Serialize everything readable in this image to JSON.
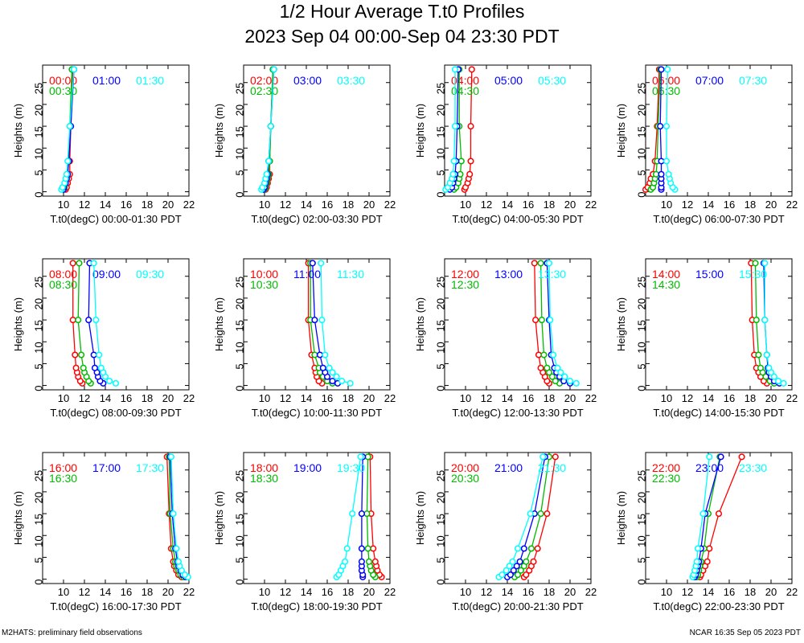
{
  "title": "1/2 Hour Average T.t0 Profiles",
  "subtitle": "2023 Sep 04 00:00-Sep 04 23:30 PDT",
  "footer_left": "M2HATS: preliminary field observations",
  "footer_right": "NCAR 16:35 Sep 05 2023 PDT",
  "colors": {
    "c0": "#ff0000",
    "c1": "#00bb00",
    "c2": "#0000ff",
    "c3": "#00ffff"
  },
  "chart_data": [
    {
      "type": "line",
      "xlabel": "T.t0(degC) 00:00-01:30 PDT",
      "ylabel": "Heights (m)",
      "xlim": [
        8,
        22
      ],
      "ylim": [
        -1,
        29
      ],
      "xticks": [
        10,
        12,
        14,
        16,
        18,
        20,
        22
      ],
      "yticks": [
        0,
        5,
        10,
        15,
        20,
        25
      ],
      "heights": [
        0.5,
        1,
        2,
        3,
        4,
        7,
        15,
        28
      ],
      "series": [
        {
          "name": "00:00",
          "values": [
            10.2,
            10.3,
            10.4,
            10.5,
            10.6,
            10.6,
            10.7,
            10.9
          ]
        },
        {
          "name": "00:30",
          "values": [
            10.0,
            10.1,
            10.2,
            10.3,
            10.4,
            10.5,
            10.6,
            10.8
          ]
        },
        {
          "name": "01:00",
          "values": [
            10.0,
            10.0,
            10.2,
            10.3,
            10.4,
            10.5,
            10.7,
            11.0
          ]
        },
        {
          "name": "01:30",
          "values": [
            9.8,
            9.9,
            10.1,
            10.2,
            10.3,
            10.4,
            10.6,
            11.0
          ]
        }
      ]
    },
    {
      "type": "line",
      "xlabel": "T.t0(degC) 02:00-03:30 PDT",
      "ylabel": "Heights (m)",
      "xlim": [
        8,
        22
      ],
      "ylim": [
        -1,
        29
      ],
      "xticks": [
        10,
        12,
        14,
        16,
        18,
        20,
        22
      ],
      "yticks": [
        0,
        5,
        10,
        15,
        20,
        25
      ],
      "heights": [
        0.5,
        1,
        2,
        3,
        4,
        7,
        15,
        28
      ],
      "series": [
        {
          "name": "02:00",
          "values": [
            10.1,
            10.2,
            10.3,
            10.4,
            10.5,
            10.5,
            10.6,
            10.8
          ]
        },
        {
          "name": "02:30",
          "values": [
            10.0,
            10.1,
            10.2,
            10.3,
            10.4,
            10.5,
            10.6,
            10.8
          ]
        },
        {
          "name": "03:00",
          "values": [
            9.9,
            10.0,
            10.1,
            10.2,
            10.3,
            10.4,
            10.6,
            10.9
          ]
        },
        {
          "name": "03:30",
          "values": [
            9.7,
            9.8,
            10.0,
            10.1,
            10.2,
            10.4,
            10.6,
            10.9
          ]
        }
      ]
    },
    {
      "type": "line",
      "xlabel": "T.t0(degC) 04:00-05:30 PDT",
      "ylabel": "Heights (m)",
      "xlim": [
        8,
        22
      ],
      "ylim": [
        -1,
        29
      ],
      "xticks": [
        10,
        12,
        14,
        16,
        18,
        20,
        22
      ],
      "yticks": [
        0,
        5,
        10,
        15,
        20,
        25
      ],
      "heights": [
        0.5,
        1,
        2,
        3,
        4,
        7,
        15,
        28
      ],
      "series": [
        {
          "name": "04:00",
          "values": [
            9.9,
            10.0,
            10.2,
            10.3,
            10.4,
            10.5,
            10.5,
            10.6
          ]
        },
        {
          "name": "04:30",
          "values": [
            8.9,
            9.1,
            9.3,
            9.4,
            9.5,
            9.6,
            9.4,
            9.4
          ]
        },
        {
          "name": "05:00",
          "values": [
            8.5,
            8.7,
            8.8,
            8.9,
            9.0,
            9.1,
            9.2,
            9.3
          ]
        },
        {
          "name": "05:30",
          "values": [
            8.1,
            8.3,
            8.5,
            8.7,
            8.8,
            8.9,
            9.0,
            9.0
          ]
        }
      ]
    },
    {
      "type": "line",
      "xlabel": "T.t0(degC) 06:00-07:30 PDT",
      "ylabel": "Heights (m)",
      "xlim": [
        8,
        22
      ],
      "ylim": [
        -1,
        29
      ],
      "xticks": [
        10,
        12,
        14,
        16,
        18,
        20,
        22
      ],
      "yticks": [
        0,
        5,
        10,
        15,
        20,
        25
      ],
      "heights": [
        0.5,
        1,
        2,
        3,
        4,
        7,
        15,
        28
      ],
      "series": [
        {
          "name": "06:00",
          "values": [
            8.0,
            8.2,
            8.4,
            8.5,
            8.7,
            8.9,
            9.1,
            9.3
          ]
        },
        {
          "name": "06:30",
          "values": [
            8.5,
            8.7,
            8.8,
            8.9,
            9.0,
            9.1,
            9.2,
            9.4
          ]
        },
        {
          "name": "07:00",
          "values": [
            9.5,
            9.5,
            9.5,
            9.5,
            9.5,
            9.5,
            9.4,
            9.5
          ]
        },
        {
          "name": "07:30",
          "values": [
            10.8,
            10.6,
            10.4,
            10.3,
            10.2,
            10.0,
            10.0,
            10.1
          ]
        }
      ]
    },
    {
      "type": "line",
      "xlabel": "T.t0(degC) 08:00-09:30 PDT",
      "ylabel": "Heights (m)",
      "xlim": [
        8,
        22
      ],
      "ylim": [
        -1,
        29
      ],
      "xticks": [
        10,
        12,
        14,
        16,
        18,
        20,
        22
      ],
      "yticks": [
        0,
        5,
        10,
        15,
        20,
        25
      ],
      "heights": [
        0.5,
        1,
        2,
        3,
        4,
        7,
        15,
        28
      ],
      "series": [
        {
          "name": "08:00",
          "values": [
            11.8,
            11.6,
            11.4,
            11.3,
            11.2,
            11.1,
            10.9,
            10.9
          ]
        },
        {
          "name": "08:30",
          "values": [
            12.6,
            12.4,
            12.2,
            12.0,
            11.9,
            11.7,
            11.4,
            11.5
          ]
        },
        {
          "name": "09:00",
          "values": [
            13.8,
            13.5,
            13.3,
            13.2,
            13.0,
            12.9,
            12.4,
            12.5
          ]
        },
        {
          "name": "09:30",
          "values": [
            15.0,
            14.4,
            14.0,
            13.8,
            13.6,
            13.4,
            13.1,
            12.9
          ]
        }
      ]
    },
    {
      "type": "line",
      "xlabel": "T.t0(degC) 10:00-11:30 PDT",
      "ylabel": "Heights (m)",
      "xlim": [
        8,
        22
      ],
      "ylim": [
        -1,
        29
      ],
      "xticks": [
        10,
        12,
        14,
        16,
        18,
        20,
        22
      ],
      "yticks": [
        0,
        5,
        10,
        15,
        20,
        25
      ],
      "heights": [
        0.5,
        1,
        2,
        3,
        4,
        7,
        15,
        28
      ],
      "series": [
        {
          "name": "10:00",
          "values": [
            15.5,
            15.2,
            15.0,
            14.9,
            14.8,
            14.5,
            14.2,
            14.2
          ]
        },
        {
          "name": "10:30",
          "values": [
            16.5,
            16.0,
            15.6,
            15.3,
            15.2,
            14.8,
            14.4,
            14.4
          ]
        },
        {
          "name": "11:00",
          "values": [
            17.0,
            16.5,
            16.0,
            15.8,
            15.6,
            15.3,
            14.8,
            14.6
          ]
        },
        {
          "name": "11:30",
          "values": [
            18.2,
            17.4,
            16.9,
            16.5,
            16.2,
            15.8,
            15.5,
            15.4
          ]
        }
      ]
    },
    {
      "type": "line",
      "xlabel": "T.t0(degC) 12:00-13:30 PDT",
      "ylabel": "Heights (m)",
      "xlim": [
        8,
        22
      ],
      "ylim": [
        -1,
        29
      ],
      "xticks": [
        10,
        12,
        14,
        16,
        18,
        20,
        22
      ],
      "yticks": [
        0,
        5,
        10,
        15,
        20,
        25
      ],
      "heights": [
        0.5,
        1,
        2,
        3,
        4,
        7,
        15,
        28
      ],
      "series": [
        {
          "name": "12:00",
          "values": [
            18.0,
            17.8,
            17.6,
            17.4,
            17.2,
            17.0,
            16.7,
            16.6
          ]
        },
        {
          "name": "12:30",
          "values": [
            19.0,
            18.6,
            18.3,
            18.0,
            17.8,
            17.5,
            17.3,
            17.2
          ]
        },
        {
          "name": "13:00",
          "values": [
            20.0,
            19.4,
            19.0,
            18.7,
            18.5,
            18.2,
            18.0,
            17.8
          ]
        },
        {
          "name": "13:30",
          "values": [
            20.6,
            20.0,
            19.5,
            19.1,
            18.8,
            18.4,
            18.1,
            18.0
          ]
        }
      ]
    },
    {
      "type": "line",
      "xlabel": "T.t0(degC) 14:00-15:30 PDT",
      "ylabel": "Heights (m)",
      "xlim": [
        8,
        22
      ],
      "ylim": [
        -1,
        29
      ],
      "xticks": [
        10,
        12,
        14,
        16,
        18,
        20,
        22
      ],
      "yticks": [
        0,
        5,
        10,
        15,
        20,
        25
      ],
      "heights": [
        0.5,
        1,
        2,
        3,
        4,
        7,
        15,
        28
      ],
      "series": [
        {
          "name": "14:00",
          "values": [
            19.6,
            19.3,
            19.0,
            18.8,
            18.6,
            18.4,
            18.2,
            18.1
          ]
        },
        {
          "name": "14:30",
          "values": [
            20.3,
            19.9,
            19.5,
            19.2,
            19.0,
            18.8,
            18.6,
            18.5
          ]
        },
        {
          "name": "15:00",
          "values": [
            20.8,
            20.3,
            20.0,
            19.8,
            19.7,
            19.6,
            19.4,
            19.3
          ]
        },
        {
          "name": "15:30",
          "values": [
            21.2,
            20.7,
            20.3,
            20.0,
            19.8,
            19.6,
            19.4,
            19.4
          ]
        }
      ]
    },
    {
      "type": "line",
      "xlabel": "T.t0(degC) 16:00-17:30 PDT",
      "ylabel": "Heights (m)",
      "xlim": [
        8,
        22
      ],
      "ylim": [
        -1,
        29
      ],
      "xticks": [
        10,
        12,
        14,
        16,
        18,
        20,
        22
      ],
      "yticks": [
        0,
        5,
        10,
        15,
        20,
        25
      ],
      "heights": [
        0.5,
        1,
        2,
        3,
        4,
        7,
        15,
        28
      ],
      "series": [
        {
          "name": "16:00",
          "values": [
            21.3,
            21.0,
            20.8,
            20.6,
            20.5,
            20.3,
            20.1,
            19.9
          ]
        },
        {
          "name": "16:30",
          "values": [
            21.5,
            21.2,
            21.0,
            20.8,
            20.7,
            20.5,
            20.2,
            20.1
          ]
        },
        {
          "name": "17:00",
          "values": [
            21.7,
            21.4,
            21.2,
            21.0,
            20.9,
            20.7,
            20.4,
            20.2
          ]
        },
        {
          "name": "17:30",
          "values": [
            21.9,
            21.6,
            21.3,
            21.1,
            21.0,
            20.8,
            20.5,
            20.3
          ]
        }
      ]
    },
    {
      "type": "line",
      "xlabel": "T.t0(degC) 18:00-19:30 PDT",
      "ylabel": "Heights (m)",
      "xlim": [
        8,
        22
      ],
      "ylim": [
        -1,
        29
      ],
      "xticks": [
        10,
        12,
        14,
        16,
        18,
        20,
        22
      ],
      "yticks": [
        0,
        5,
        10,
        15,
        20,
        25
      ],
      "heights": [
        0.5,
        1,
        2,
        3,
        4,
        7,
        15,
        28
      ],
      "series": [
        {
          "name": "18:00",
          "values": [
            21.2,
            21.0,
            20.8,
            20.7,
            20.6,
            20.4,
            20.2,
            20.1
          ]
        },
        {
          "name": "18:30",
          "values": [
            20.6,
            20.4,
            20.2,
            20.1,
            20.0,
            19.9,
            19.8,
            19.9
          ]
        },
        {
          "name": "19:00",
          "values": [
            19.4,
            19.4,
            19.3,
            19.3,
            19.3,
            19.3,
            19.3,
            19.4
          ]
        },
        {
          "name": "19:30",
          "values": [
            16.9,
            17.1,
            17.3,
            17.5,
            17.7,
            17.9,
            18.4,
            19.2
          ]
        }
      ]
    },
    {
      "type": "line",
      "xlabel": "T.t0(degC) 20:00-21:30 PDT",
      "ylabel": "Heights (m)",
      "xlim": [
        8,
        22
      ],
      "ylim": [
        -1,
        29
      ],
      "xticks": [
        10,
        12,
        14,
        16,
        18,
        20,
        22
      ],
      "yticks": [
        0,
        5,
        10,
        15,
        20,
        25
      ],
      "heights": [
        0.5,
        1,
        2,
        3,
        4,
        7,
        15,
        28
      ],
      "series": [
        {
          "name": "20:00",
          "values": [
            15.6,
            15.8,
            16.1,
            16.3,
            16.5,
            16.9,
            17.8,
            18.6
          ]
        },
        {
          "name": "20:30",
          "values": [
            14.7,
            15.0,
            15.3,
            15.6,
            15.8,
            16.3,
            17.2,
            18.0
          ]
        },
        {
          "name": "21:00",
          "values": [
            14.0,
            14.3,
            14.6,
            14.9,
            15.2,
            15.6,
            16.6,
            17.6
          ]
        },
        {
          "name": "21:30",
          "values": [
            13.2,
            13.5,
            13.9,
            14.2,
            14.5,
            15.0,
            16.2,
            17.4
          ]
        }
      ]
    },
    {
      "type": "line",
      "xlabel": "T.t0(degC) 22:00-23:30 PDT",
      "ylabel": "Heights (m)",
      "xlim": [
        8,
        22
      ],
      "ylim": [
        -1,
        29
      ],
      "xticks": [
        10,
        12,
        14,
        16,
        18,
        20,
        22
      ],
      "yticks": [
        0,
        5,
        10,
        15,
        20,
        25
      ],
      "heights": [
        0.5,
        1,
        2,
        3,
        4,
        7,
        15,
        28
      ],
      "series": [
        {
          "name": "22:00",
          "values": [
            13.2,
            13.3,
            13.5,
            13.7,
            13.9,
            14.1,
            15.0,
            17.2
          ]
        },
        {
          "name": "22:30",
          "values": [
            12.9,
            13.0,
            13.1,
            13.2,
            13.3,
            13.6,
            14.0,
            15.1
          ]
        },
        {
          "name": "23:00",
          "values": [
            12.7,
            12.8,
            12.9,
            13.0,
            13.1,
            13.3,
            13.7,
            15.2
          ]
        },
        {
          "name": "23:30",
          "values": [
            12.5,
            12.6,
            12.7,
            12.8,
            12.9,
            13.0,
            13.5,
            14.1
          ]
        }
      ]
    }
  ]
}
